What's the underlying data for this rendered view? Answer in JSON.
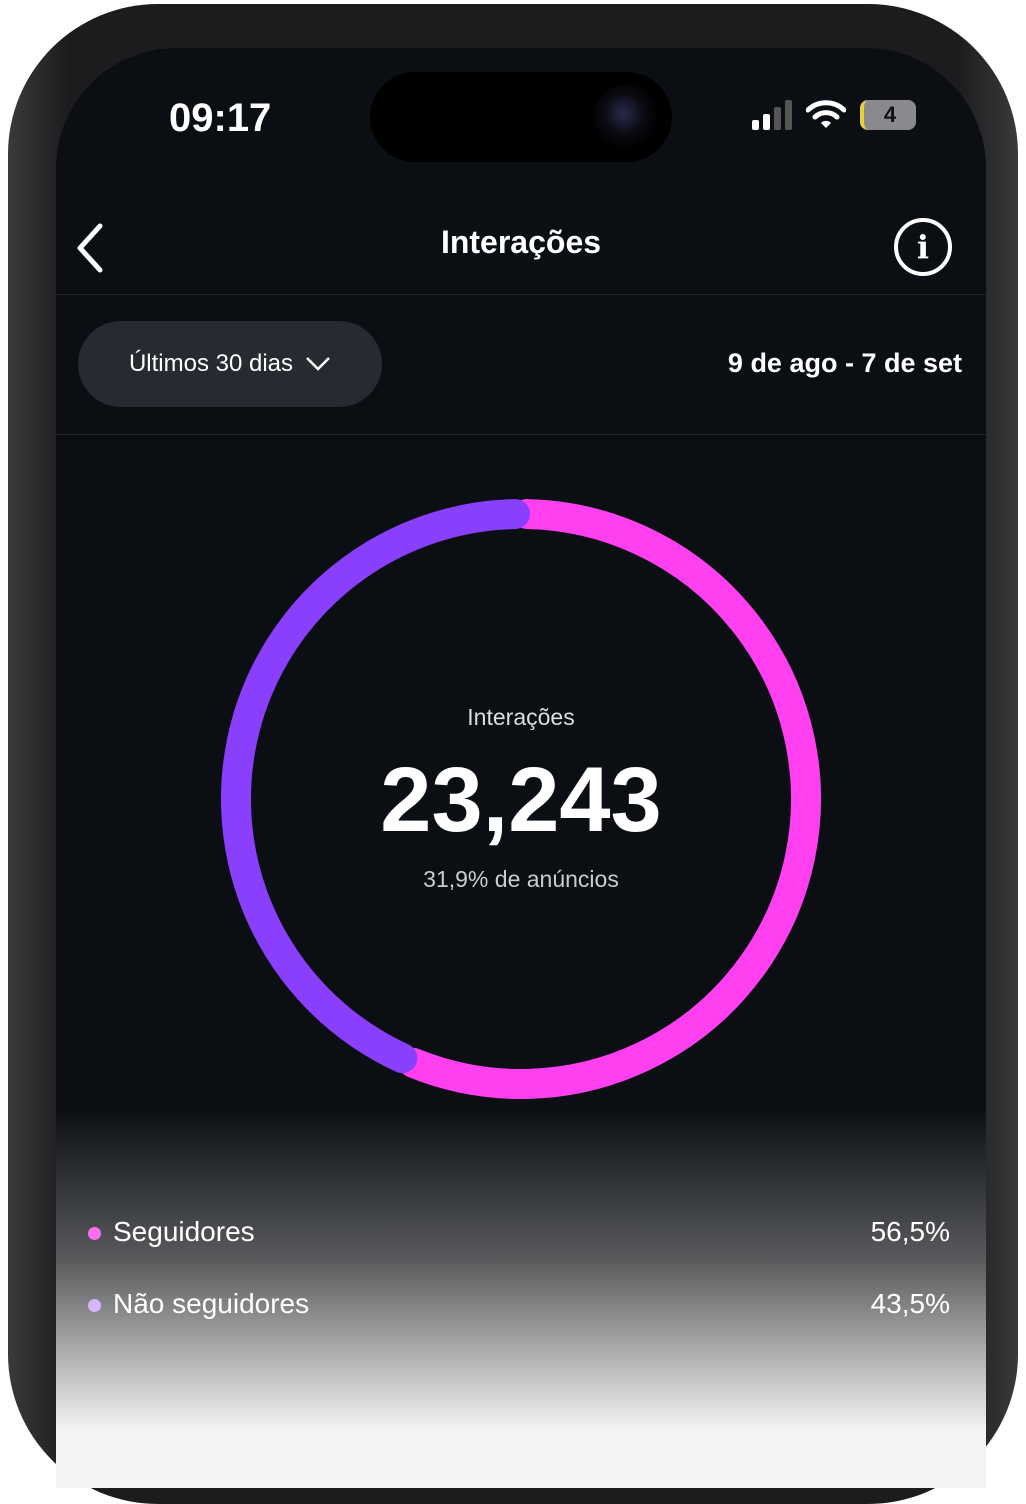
{
  "status_bar": {
    "time": "09:17",
    "battery": "4"
  },
  "header": {
    "title": "Interações",
    "back_icon": "chevron-left-icon",
    "info_icon": "info-icon",
    "info_glyph": "i"
  },
  "filter": {
    "selected": "Últimos 30 dias",
    "date_range": "9 de ago - 7 de set"
  },
  "chart_data": {
    "type": "pie",
    "center_label": "Interações",
    "total": "23,243",
    "subtitle": "31,9% de anúncios",
    "series": [
      {
        "name": "Seguidores",
        "value": 56.5,
        "label": "56,5%",
        "color": "#ff3ff0"
      },
      {
        "name": "Não seguidores",
        "value": 43.5,
        "label": "43,5%",
        "color": "#8a3ffc"
      }
    ],
    "legend_dot_colors": [
      "#ff6ef0",
      "#d8b4f8"
    ]
  }
}
